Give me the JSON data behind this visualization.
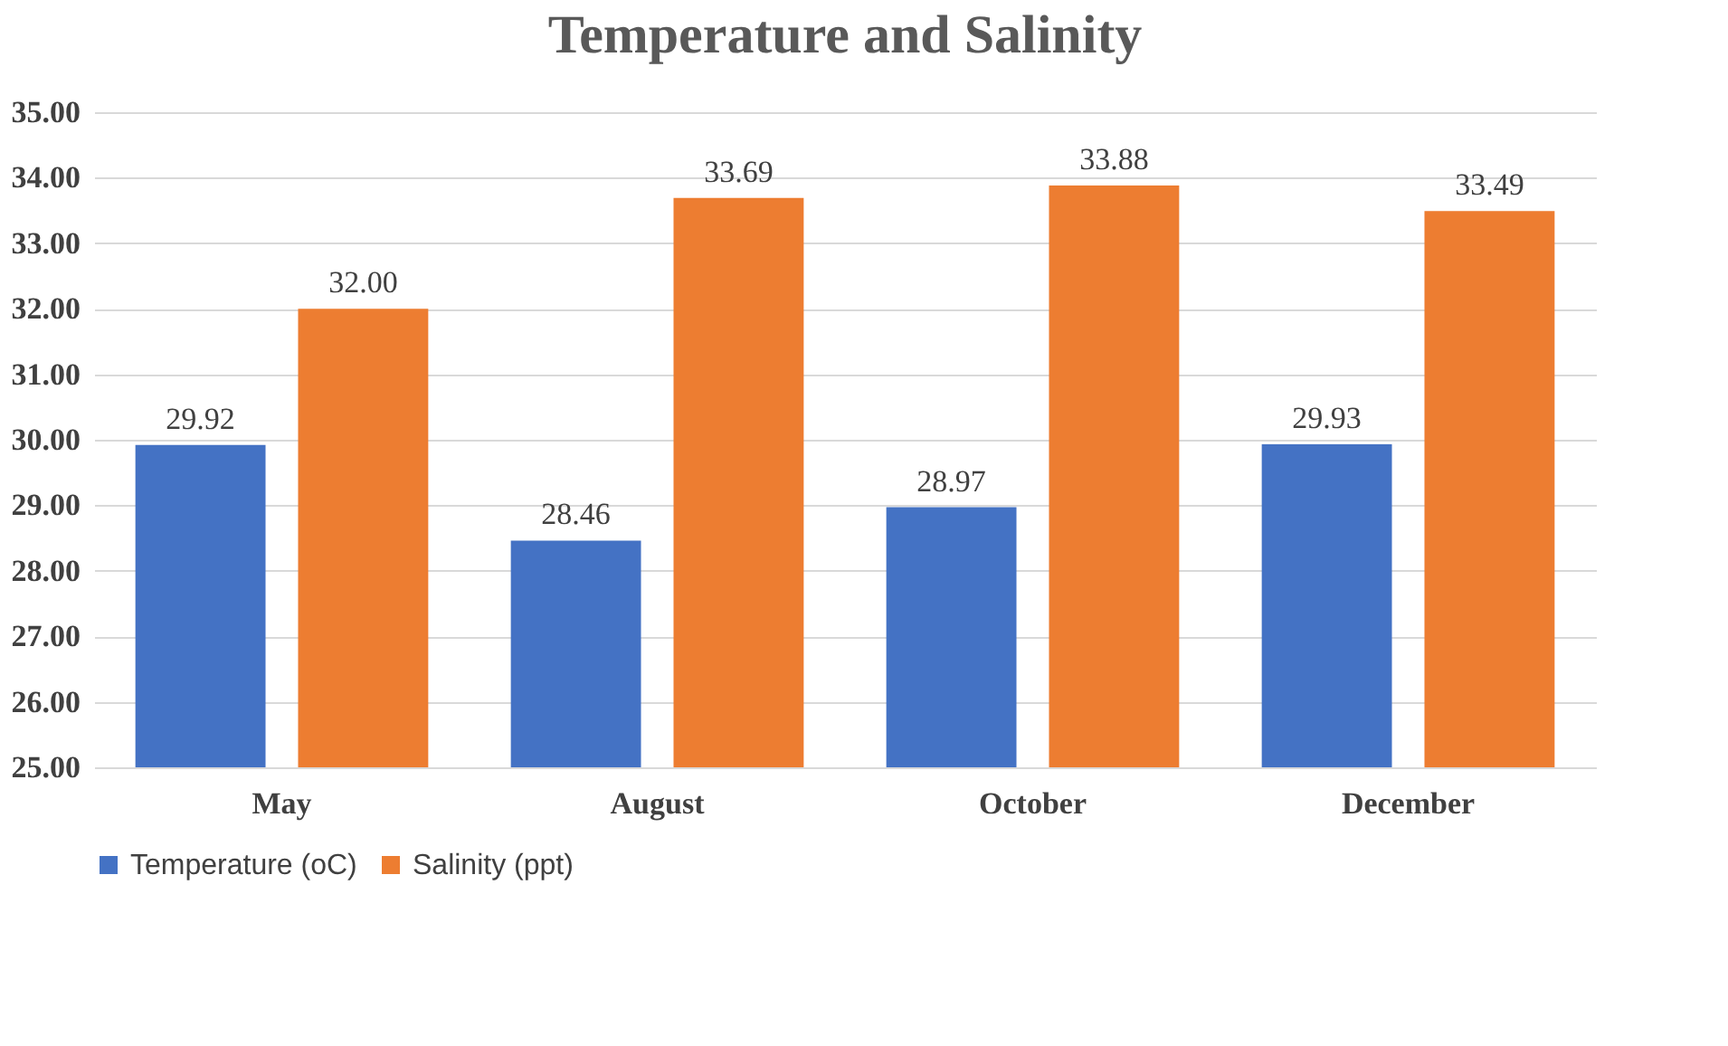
{
  "chart_data": {
    "type": "bar",
    "title": "Temperature and Salinity",
    "categories": [
      "May",
      "August",
      "October",
      "December"
    ],
    "series": [
      {
        "name": "Temperature (oC)",
        "color": "#4472c4",
        "values": [
          29.92,
          28.46,
          28.97,
          29.93
        ],
        "value_labels": [
          "29.92",
          "28.46",
          "28.97",
          "29.93"
        ]
      },
      {
        "name": "Salinity (ppt)",
        "color": "#ed7d31",
        "values": [
          32.0,
          33.69,
          33.88,
          33.49
        ],
        "value_labels": [
          "32.00",
          "33.69",
          "33.88",
          "33.49"
        ]
      }
    ],
    "ylim": [
      25,
      35
    ],
    "yticks": [
      {
        "value": 25,
        "label": "25.00"
      },
      {
        "value": 26,
        "label": "26.00"
      },
      {
        "value": 27,
        "label": "27.00"
      },
      {
        "value": 28,
        "label": "28.00"
      },
      {
        "value": 29,
        "label": "29.00"
      },
      {
        "value": 30,
        "label": "30.00"
      },
      {
        "value": 31,
        "label": "31.00"
      },
      {
        "value": 32,
        "label": "32.00"
      },
      {
        "value": 33,
        "label": "33.00"
      },
      {
        "value": 34,
        "label": "34.00"
      },
      {
        "value": 35,
        "label": "35.00"
      }
    ],
    "grid": "y",
    "legend": "bottom"
  }
}
